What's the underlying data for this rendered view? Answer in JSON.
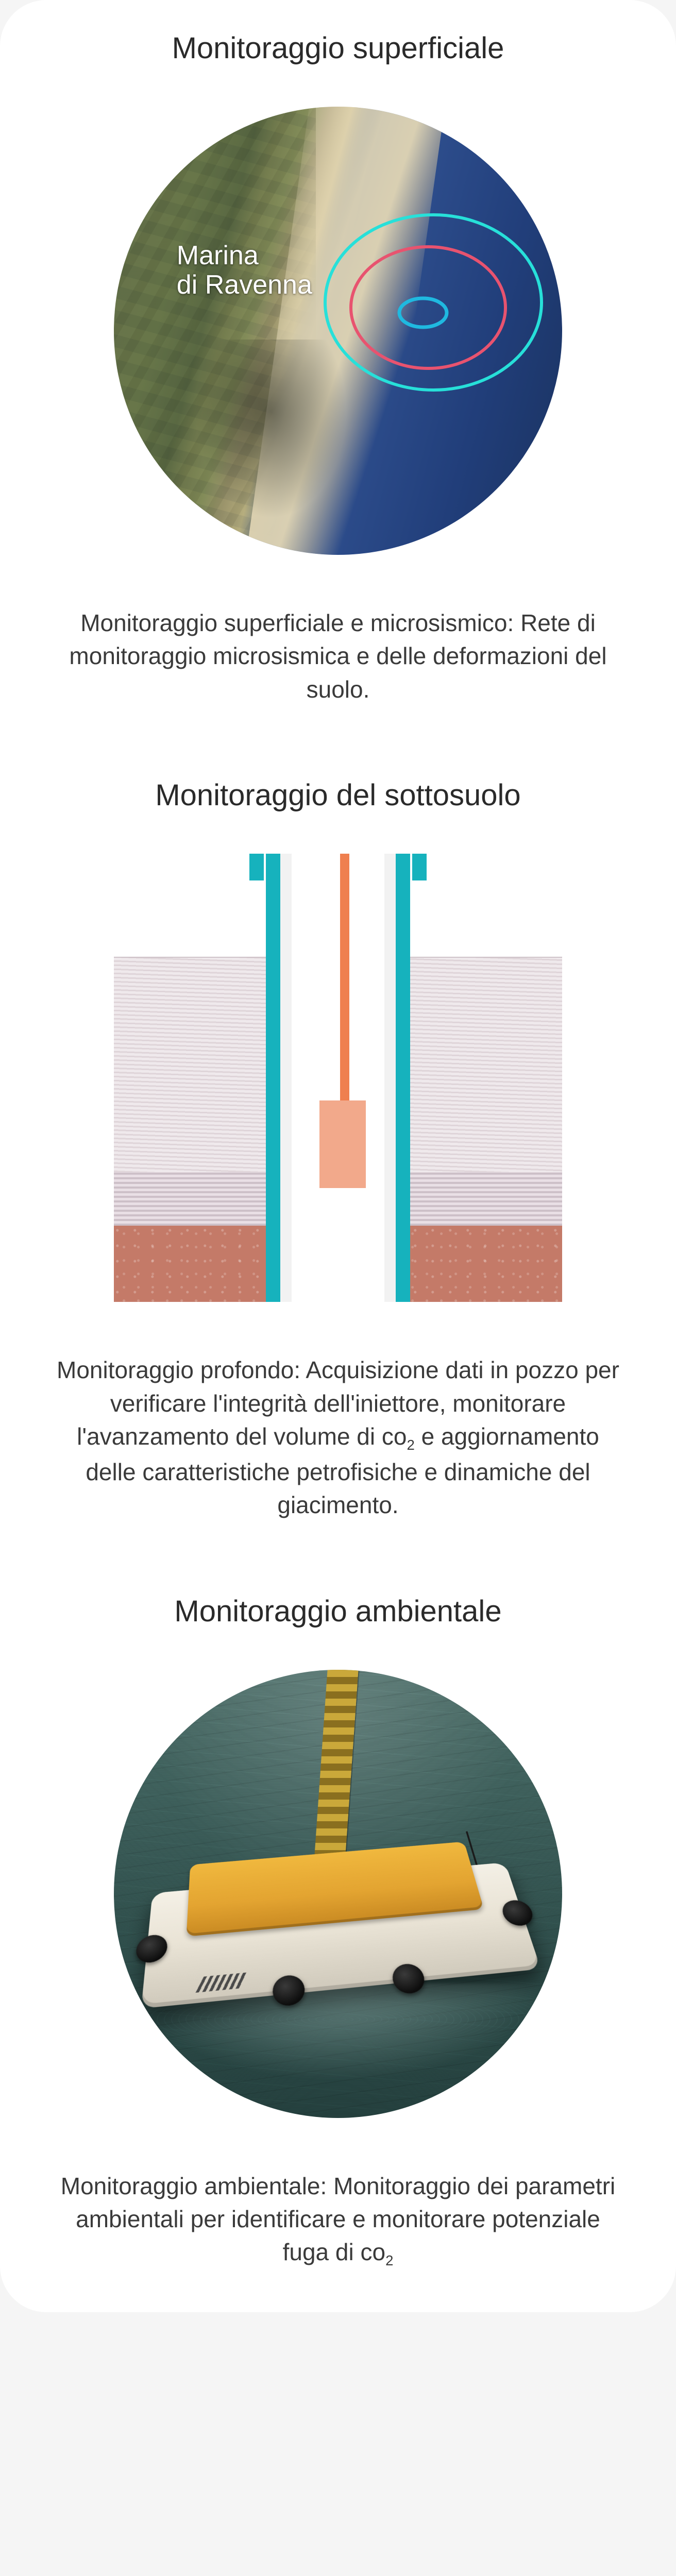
{
  "sections": [
    {
      "title": "Monitoraggio superficiale",
      "desc": "Monitoraggio superficiale e microsismico: Rete di monitoraggio microsismica e delle deformazioni del suolo.",
      "map_label_line1": "Marina",
      "map_label_line2": "di Ravenna",
      "ring_colors": {
        "outer": "#27e0d9",
        "mid": "#e8536f",
        "inner": "#1fb9e0"
      }
    },
    {
      "title": "Monitoraggio del sottosuolo",
      "desc_html": "Monitoraggio profondo: Acquisizione dati in pozzo per verificare l'integrità dell'iniettore, monitorare l'avanzamento del volume di co<sub>2</sub> e aggiornamento delle caratteristiche petrofisiche e dinamiche del giacimento.",
      "colors": {
        "casing": "#16b2bd",
        "injector": "#ef7f4f",
        "sensor": "#f2a98b"
      }
    },
    {
      "title": "Monitoraggio ambientale",
      "desc_html": "Monitoraggio ambientale: Monitoraggio dei parametri ambientali per identificare e monitorare potenziale fuga di co<sub>2</sub>",
      "colors": {
        "sea_top": "#4a6b66",
        "sea_bottom": "#243f3d",
        "rov_top": "#f0b83e",
        "rov_body": "#e9e3d5"
      }
    }
  ]
}
